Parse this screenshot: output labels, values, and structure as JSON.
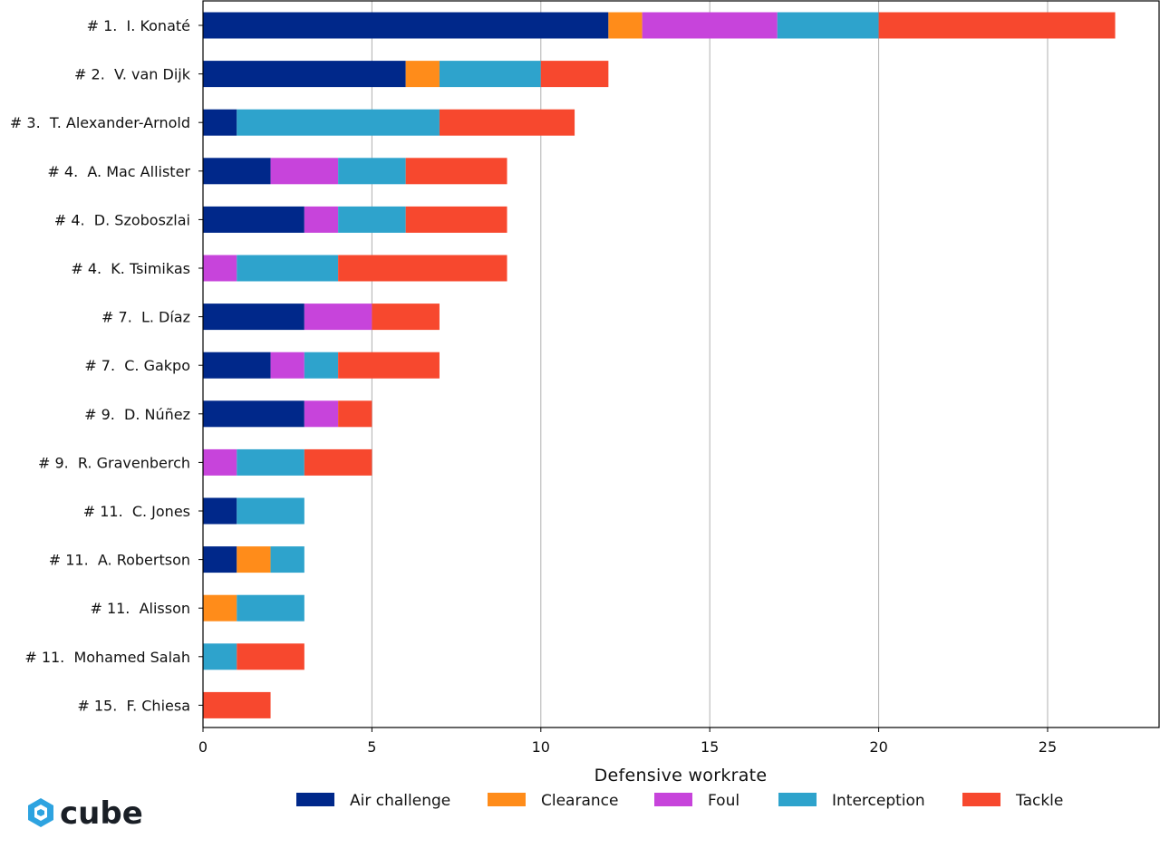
{
  "chart_data": {
    "type": "bar",
    "orientation": "horizontal",
    "stacked": true,
    "categories": [
      "# 1.  I. Konaté",
      "# 2.  V. van Dijk",
      "# 3.  T. Alexander-Arnold",
      "# 4.  A. Mac Allister",
      "# 4.  D. Szoboszlai",
      "# 4.  K. Tsimikas",
      "# 7.  L. Díaz",
      "# 7.  C. Gakpo",
      "# 9.  D. Núñez",
      "# 9.  R. Gravenberch",
      "# 11.  C. Jones",
      "# 11.  A. Robertson",
      "# 11.  Alisson",
      "# 11.  Mohamed Salah",
      "# 15.  F. Chiesa"
    ],
    "series": [
      {
        "name": "Air challenge",
        "color": "#00288a",
        "values": [
          12,
          6,
          1,
          2,
          3,
          0,
          3,
          2,
          3,
          0,
          1,
          1,
          0,
          0,
          0
        ]
      },
      {
        "name": "Clearance",
        "color": "#ff8c1a",
        "values": [
          1,
          1,
          0,
          0,
          0,
          0,
          0,
          0,
          0,
          0,
          0,
          1,
          1,
          0,
          0
        ]
      },
      {
        "name": "Foul",
        "color": "#c744db",
        "values": [
          4,
          0,
          0,
          2,
          1,
          1,
          2,
          1,
          1,
          1,
          0,
          0,
          0,
          0,
          0
        ]
      },
      {
        "name": "Interception",
        "color": "#2ea3cc",
        "values": [
          3,
          3,
          6,
          2,
          2,
          3,
          0,
          1,
          0,
          2,
          2,
          1,
          2,
          1,
          0
        ]
      },
      {
        "name": "Tackle",
        "color": "#f7482e",
        "values": [
          7,
          2,
          4,
          3,
          3,
          5,
          2,
          3,
          1,
          2,
          0,
          0,
          0,
          2,
          2
        ]
      }
    ],
    "xlabel": "Defensive workrate",
    "ylabel": "",
    "xlim": [
      0,
      28.3
    ],
    "xticks": [
      0,
      5,
      10,
      15,
      20,
      25
    ],
    "grid": "vertical",
    "legend_position": "bottom"
  },
  "brand": {
    "logo_text": "cube",
    "logo_icon": "cube-logo-icon",
    "logo_color": "#2ea3e0"
  }
}
